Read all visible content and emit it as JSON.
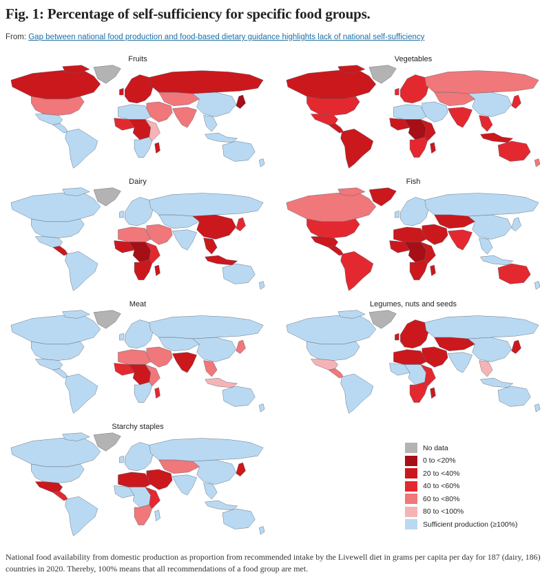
{
  "figure": {
    "title": "Fig. 1: Percentage of self-sufficiency for specific food groups.",
    "from_prefix": "From: ",
    "from_link": "Gap between national food production and food-based dietary guidance highlights lack of national self-sufficiency",
    "caption": "National food availability from domestic production as proportion from recommended intake by the Livewell diet in grams per capita per day for 187 (dairy, 186) countries in 2020. Thereby, 100% means that all recommendations of a food group are met."
  },
  "colors": {
    "no_data": "#b3b3b3",
    "c0": "#a50f15",
    "c20": "#cb181d",
    "c40": "#e3292f",
    "c60": "#f0777a",
    "c80": "#f6b3b5",
    "sufficient": "#b9d9f2"
  },
  "legend": [
    {
      "label": "No data",
      "color": "no_data"
    },
    {
      "label": "0 to <20%",
      "color": "c0"
    },
    {
      "label": "20 to <40%",
      "color": "c20"
    },
    {
      "label": "40 to <60%",
      "color": "c40"
    },
    {
      "label": "60 to <80%",
      "color": "c60"
    },
    {
      "label": "80 to <100%",
      "color": "c80"
    },
    {
      "label": "Sufficient production (≥100%)",
      "color": "sufficient"
    }
  ],
  "panels": [
    {
      "title": "Fruits",
      "regions": {
        "greenland": "no_data",
        "north_america": "c20",
        "usa": "c60",
        "mexico": "sufficient",
        "central_america": "sufficient",
        "south_america": "sufficient",
        "europe": "c20",
        "russia": "c20",
        "middle_east": "c60",
        "north_africa": "sufficient",
        "west_africa": "c40",
        "central_africa": "c20",
        "east_africa": "c80",
        "southern_africa": "sufficient",
        "madagascar": "c20",
        "central_asia": "c60",
        "south_asia": "c60",
        "china": "sufficient",
        "southeast_asia": "sufficient",
        "indonesia": "sufficient",
        "japan": "c0",
        "australia": "sufficient",
        "new_zealand": "sufficient"
      }
    },
    {
      "title": "Vegetables",
      "regions": {
        "greenland": "no_data",
        "north_america": "c20",
        "usa": "c40",
        "mexico": "c40",
        "central_america": "c20",
        "south_america": "c20",
        "europe": "c40",
        "russia": "c60",
        "middle_east": "sufficient",
        "north_africa": "sufficient",
        "west_africa": "c20",
        "central_africa": "c0",
        "east_africa": "c20",
        "southern_africa": "c40",
        "madagascar": "c20",
        "central_asia": "c60",
        "south_asia": "c40",
        "china": "sufficient",
        "southeast_asia": "c40",
        "indonesia": "c20",
        "japan": "c40",
        "australia": "c40",
        "new_zealand": "c60"
      }
    },
    {
      "title": "Dairy",
      "regions": {
        "greenland": "no_data",
        "north_america": "sufficient",
        "usa": "sufficient",
        "mexico": "sufficient",
        "central_america": "c20",
        "south_america": "sufficient",
        "europe": "sufficient",
        "russia": "sufficient",
        "middle_east": "c60",
        "north_africa": "c60",
        "west_africa": "c20",
        "central_africa": "c0",
        "east_africa": "c40",
        "southern_africa": "c20",
        "madagascar": "c20",
        "central_asia": "sufficient",
        "south_asia": "sufficient",
        "china": "c20",
        "southeast_asia": "c20",
        "indonesia": "c20",
        "japan": "c40",
        "australia": "sufficient",
        "new_zealand": "sufficient"
      }
    },
    {
      "title": "Fish",
      "regions": {
        "greenland": "c20",
        "north_america": "c60",
        "usa": "c40",
        "mexico": "c20",
        "central_america": "c20",
        "south_america": "c40",
        "europe": "sufficient",
        "russia": "sufficient",
        "middle_east": "c20",
        "north_africa": "c20",
        "west_africa": "c20",
        "central_africa": "c0",
        "east_africa": "c20",
        "southern_africa": "c20",
        "madagascar": "c20",
        "central_asia": "c20",
        "south_asia": "c40",
        "china": "sufficient",
        "southeast_asia": "sufficient",
        "indonesia": "sufficient",
        "japan": "sufficient",
        "australia": "c40",
        "new_zealand": "sufficient"
      }
    },
    {
      "title": "Meat",
      "regions": {
        "greenland": "no_data",
        "north_america": "sufficient",
        "usa": "sufficient",
        "mexico": "sufficient",
        "central_america": "sufficient",
        "south_america": "sufficient",
        "europe": "sufficient",
        "russia": "sufficient",
        "middle_east": "c60",
        "north_africa": "c60",
        "west_africa": "c40",
        "central_africa": "c20",
        "east_africa": "c60",
        "southern_africa": "sufficient",
        "madagascar": "c40",
        "central_asia": "sufficient",
        "south_asia": "c20",
        "china": "sufficient",
        "southeast_asia": "c60",
        "indonesia": "c80",
        "japan": "c60",
        "australia": "sufficient",
        "new_zealand": "sufficient"
      }
    },
    {
      "title": "Legumes, nuts and seeds",
      "regions": {
        "greenland": "no_data",
        "north_america": "sufficient",
        "usa": "sufficient",
        "mexico": "c80",
        "central_america": "c60",
        "south_america": "sufficient",
        "europe": "c20",
        "russia": "sufficient",
        "middle_east": "c20",
        "north_africa": "c20",
        "west_africa": "sufficient",
        "central_africa": "sufficient",
        "east_africa": "c40",
        "southern_africa": "c40",
        "madagascar": "c20",
        "central_asia": "c20",
        "south_asia": "sufficient",
        "china": "sufficient",
        "southeast_asia": "c80",
        "indonesia": "sufficient",
        "japan": "c20",
        "australia": "sufficient",
        "new_zealand": "sufficient"
      }
    },
    {
      "title": "Starchy staples",
      "regions": {
        "greenland": "no_data",
        "north_america": "sufficient",
        "usa": "sufficient",
        "mexico": "c20",
        "central_america": "c40",
        "south_america": "sufficient",
        "europe": "sufficient",
        "russia": "sufficient",
        "middle_east": "c20",
        "north_africa": "c20",
        "west_africa": "sufficient",
        "central_africa": "sufficient",
        "east_africa": "c40",
        "southern_africa": "c60",
        "madagascar": "sufficient",
        "central_asia": "c60",
        "south_asia": "sufficient",
        "china": "sufficient",
        "southeast_asia": "sufficient",
        "indonesia": "sufficient",
        "japan": "c20",
        "australia": "sufficient",
        "new_zealand": "sufficient"
      }
    }
  ]
}
